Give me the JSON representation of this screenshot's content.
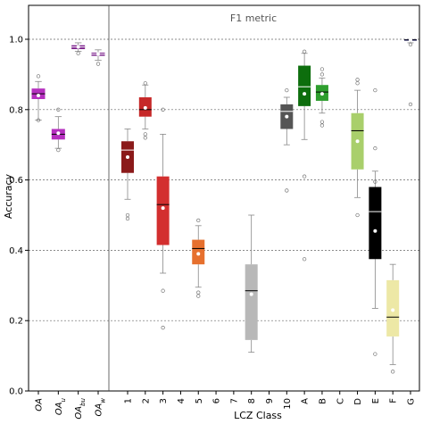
{
  "chart_data": {
    "type": "box",
    "title": "F1 metric",
    "xlabel": "LCZ Class",
    "ylabel": "Accuracy",
    "ylim": [
      0.0,
      1.05
    ],
    "yticks": [
      "0.0",
      "0.2",
      "0.4",
      "0.6",
      "0.8",
      "1.0"
    ],
    "grid": "horizontal dotted",
    "panels": [
      {
        "name": "overall",
        "categories": [
          {
            "label": "OA",
            "sub": ""
          },
          {
            "label": "OA",
            "sub": "u"
          },
          {
            "label": "OA",
            "sub": "bu"
          },
          {
            "label": "OA",
            "sub": "w"
          }
        ]
      },
      {
        "name": "classes",
        "categories": [
          {
            "label": "1",
            "sub": ""
          },
          {
            "label": "2",
            "sub": ""
          },
          {
            "label": "3",
            "sub": ""
          },
          {
            "label": "4",
            "sub": ""
          },
          {
            "label": "5",
            "sub": ""
          },
          {
            "label": "6",
            "sub": ""
          },
          {
            "label": "7",
            "sub": ""
          },
          {
            "label": "8",
            "sub": ""
          },
          {
            "label": "9",
            "sub": ""
          },
          {
            "label": "10",
            "sub": ""
          },
          {
            "label": "A",
            "sub": ""
          },
          {
            "label": "B",
            "sub": ""
          },
          {
            "label": "C",
            "sub": ""
          },
          {
            "label": "D",
            "sub": ""
          },
          {
            "label": "E",
            "sub": ""
          },
          {
            "label": "F",
            "sub": ""
          },
          {
            "label": "G",
            "sub": ""
          }
        ]
      }
    ],
    "boxes": [
      {
        "panel": 0,
        "index": 0,
        "color": "#b52fbf",
        "q1": 0.83,
        "median": 0.845,
        "q3": 0.86,
        "mean": 0.84,
        "whisker_low": 0.77,
        "whisker_high": 0.88,
        "outliers": [
          0.895,
          0.77
        ]
      },
      {
        "panel": 0,
        "index": 1,
        "color": "#b52fbf",
        "q1": 0.715,
        "median": 0.73,
        "q3": 0.745,
        "mean": 0.733,
        "whisker_low": 0.69,
        "whisker_high": 0.78,
        "outliers": [
          0.8,
          0.685
        ]
      },
      {
        "panel": 0,
        "index": 2,
        "color": "#7b1f8a",
        "q1": 0.972,
        "median": 0.978,
        "q3": 0.983,
        "mean": 0.978,
        "whisker_low": 0.966,
        "whisker_high": 0.99,
        "outliers": [
          0.96
        ]
      },
      {
        "panel": 0,
        "index": 3,
        "color": "#7b1f8a",
        "q1": 0.953,
        "median": 0.958,
        "q3": 0.962,
        "mean": 0.958,
        "whisker_low": 0.94,
        "whisker_high": 0.97,
        "outliers": [
          0.93
        ]
      },
      {
        "panel": 1,
        "index": 0,
        "color": "#8b1a1a",
        "q1": 0.62,
        "median": 0.685,
        "q3": 0.71,
        "mean": 0.665,
        "whisker_low": 0.545,
        "whisker_high": 0.745,
        "outliers": [
          0.5,
          0.49
        ]
      },
      {
        "panel": 1,
        "index": 1,
        "color": "#c62828",
        "q1": 0.78,
        "median": 0.8,
        "q3": 0.835,
        "mean": 0.805,
        "whisker_low": 0.745,
        "whisker_high": 0.87,
        "outliers": [
          0.875,
          0.73,
          0.72
        ]
      },
      {
        "panel": 1,
        "index": 2,
        "color": "#d32f2f",
        "q1": 0.415,
        "median": 0.53,
        "q3": 0.61,
        "mean": 0.52,
        "whisker_low": 0.335,
        "whisker_high": 0.73,
        "outliers": [
          0.8,
          0.285,
          0.18
        ]
      },
      {
        "panel": 1,
        "index": 4,
        "color": "#e6702e",
        "q1": 0.36,
        "median": 0.405,
        "q3": 0.43,
        "mean": 0.39,
        "whisker_low": 0.295,
        "whisker_high": 0.47,
        "outliers": [
          0.485,
          0.28,
          0.27
        ]
      },
      {
        "panel": 1,
        "index": 7,
        "color": "#b8b8b8",
        "q1": 0.145,
        "median": 0.285,
        "q3": 0.36,
        "mean": 0.275,
        "whisker_low": 0.11,
        "whisker_high": 0.5,
        "outliers": []
      },
      {
        "panel": 1,
        "index": 9,
        "color": "#555555",
        "q1": 0.745,
        "median": 0.795,
        "q3": 0.815,
        "mean": 0.78,
        "whisker_low": 0.7,
        "whisker_high": 0.835,
        "outliers": [
          0.57,
          0.855
        ]
      },
      {
        "panel": 1,
        "index": 10,
        "color": "#0d6e0d",
        "q1": 0.81,
        "median": 0.865,
        "q3": 0.925,
        "mean": 0.845,
        "whisker_low": 0.715,
        "whisker_high": 0.96,
        "outliers": [
          0.965,
          0.61,
          0.375
        ]
      },
      {
        "panel": 1,
        "index": 11,
        "color": "#2e9e2e",
        "q1": 0.825,
        "median": 0.85,
        "q3": 0.87,
        "mean": 0.845,
        "whisker_low": 0.79,
        "whisker_high": 0.89,
        "outliers": [
          0.915,
          0.9,
          0.765,
          0.755
        ]
      },
      {
        "panel": 1,
        "index": 13,
        "color": "#a9cf6b",
        "q1": 0.63,
        "median": 0.74,
        "q3": 0.79,
        "mean": 0.71,
        "whisker_low": 0.55,
        "whisker_high": 0.855,
        "outliers": [
          0.885,
          0.875,
          0.5
        ]
      },
      {
        "panel": 1,
        "index": 14,
        "color": "#000000",
        "q1": 0.375,
        "median": 0.51,
        "q3": 0.58,
        "mean": 0.455,
        "whisker_low": 0.235,
        "whisker_high": 0.625,
        "outliers": [
          0.855,
          0.69,
          0.595,
          0.105
        ]
      },
      {
        "panel": 1,
        "index": 15,
        "color": "#ede8a6",
        "q1": 0.155,
        "median": 0.21,
        "q3": 0.315,
        "mean": 0.23,
        "whisker_low": 0.075,
        "whisker_high": 0.36,
        "outliers": [
          0.055
        ]
      },
      {
        "panel": 1,
        "index": 16,
        "color": "#3a3aa8",
        "q1": 0.996,
        "median": 0.998,
        "q3": 1.0,
        "mean": 0.998,
        "whisker_low": 0.99,
        "whisker_high": 1.0,
        "outliers": [
          0.985,
          0.815
        ]
      }
    ]
  }
}
